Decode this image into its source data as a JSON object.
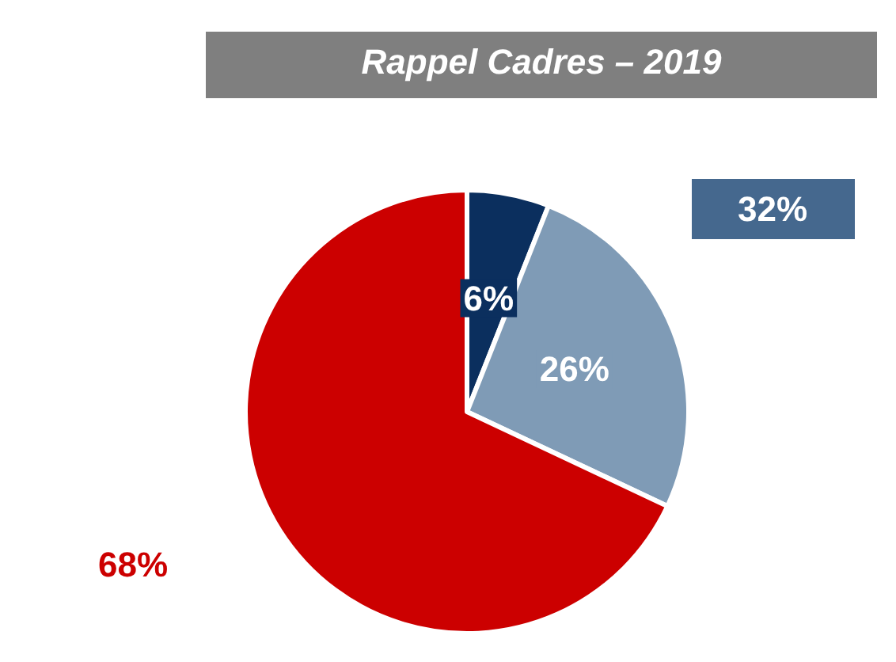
{
  "chart_data": {
    "type": "pie",
    "title": "Rappel Cadres – 2019",
    "categories": [
      null,
      null,
      null
    ],
    "values": [
      6,
      26,
      68
    ],
    "value_labels": [
      "6%",
      "26%",
      "68%"
    ],
    "colors": [
      "#0b2f5e",
      "#7f9bb6",
      "#cc0000"
    ],
    "annotations": [
      "32%"
    ]
  }
}
